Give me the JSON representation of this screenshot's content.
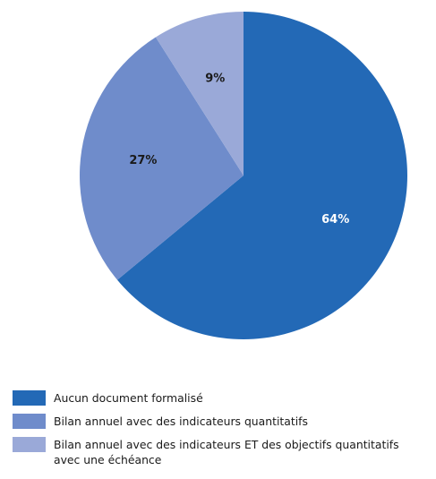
{
  "chart_data": {
    "type": "pie",
    "title": "",
    "start_angle_deg": 0,
    "direction": "clockwise",
    "legend_position": "bottom-left",
    "slices": [
      {
        "label": "Aucun document formalisé",
        "value": 64,
        "value_label": "64%",
        "color": "#2369b6",
        "label_color": "#ffffff"
      },
      {
        "label": "Bilan annuel avec des indicateurs quantitatifs",
        "value": 27,
        "value_label": "27%",
        "color": "#6f8ccb",
        "label_color": "#1a1a1a"
      },
      {
        "label": "Bilan annuel avec des indicateurs ET des objectifs quantitatifs\navec une échéance",
        "value": 9,
        "value_label": "9%",
        "color": "#9aa9d8",
        "label_color": "#1a1a1a"
      }
    ]
  }
}
